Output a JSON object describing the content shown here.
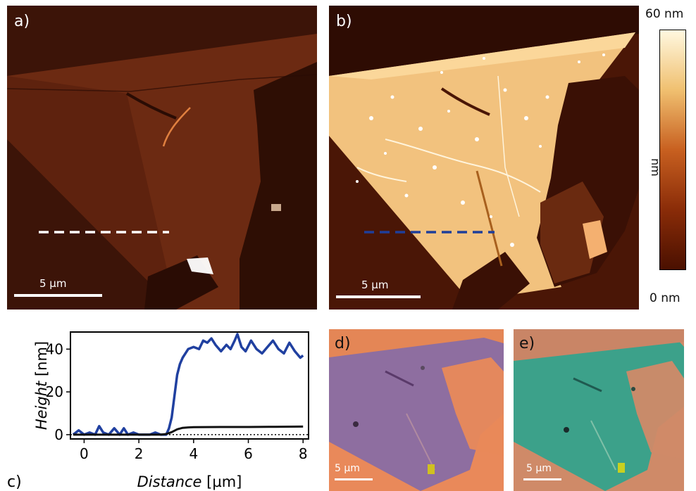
{
  "panels": {
    "a": {
      "label": "a)",
      "scale_bar": "5 µm"
    },
    "b": {
      "label": "b)",
      "scale_bar": "5 µm"
    },
    "c": {
      "label": "c)"
    },
    "d": {
      "label": "d)",
      "scale_bar": "5 µm"
    },
    "e": {
      "label": "e)",
      "scale_bar": "5 µm"
    }
  },
  "colorbar": {
    "max_label": "60 nm",
    "min_label": "0 nm",
    "unit_label": "nm",
    "colors": [
      "#fff8e0",
      "#f0c070",
      "#c86020",
      "#8a2c08",
      "#4a1000"
    ]
  },
  "colors": {
    "afm_dark": "#4a1a0c",
    "afm_flake_a": "#6e2c12",
    "afm_flake_b": "#f2c27a",
    "optical_bg": "#e98a5a",
    "optical_flake_d": "#8f6fa0",
    "optical_flake_e": "#3aa08a",
    "line_a": "#ffffff",
    "line_b": "#1f3f9a"
  },
  "chart_data": {
    "type": "line",
    "xlabel_italic": "Distance",
    "xlabel_unit": " [µm]",
    "ylabel_italic": "Height",
    "ylabel_unit": " [nm]",
    "xlim": [
      -0.5,
      8.2
    ],
    "ylim": [
      -2,
      48
    ],
    "xticks": [
      0,
      2,
      4,
      6,
      8
    ],
    "yticks": [
      0,
      20,
      40
    ],
    "grid": false,
    "reference_line": {
      "y": 0,
      "style": "dotted"
    },
    "series": [
      {
        "color": "#2040a0",
        "x": [
          -0.4,
          -0.2,
          0.0,
          0.2,
          0.4,
          0.55,
          0.7,
          0.9,
          1.1,
          1.3,
          1.45,
          1.6,
          1.8,
          2.0,
          2.2,
          2.4,
          2.6,
          2.8,
          3.0,
          3.1,
          3.2,
          3.3,
          3.4,
          3.5,
          3.6,
          3.7,
          3.8,
          4.0,
          4.2,
          4.35,
          4.5,
          4.65,
          4.8,
          5.0,
          5.2,
          5.35,
          5.5,
          5.6,
          5.75,
          5.9,
          6.1,
          6.3,
          6.5,
          6.7,
          6.9,
          7.1,
          7.3,
          7.5,
          7.7,
          7.9,
          8.0
        ],
        "y": [
          0,
          2,
          0,
          1,
          0,
          4,
          1,
          0,
          3,
          0,
          3,
          0,
          1,
          0,
          0,
          0,
          1,
          0,
          0,
          3,
          8,
          18,
          28,
          33,
          36,
          38,
          40,
          41,
          40,
          44,
          43,
          45,
          42,
          39,
          42,
          40,
          44,
          47,
          41,
          39,
          44,
          40,
          38,
          41,
          44,
          40,
          38,
          43,
          39,
          36,
          37
        ]
      },
      {
        "color": "#101010",
        "x": [
          -0.4,
          0.0,
          1.0,
          2.0,
          2.8,
          3.0,
          3.2,
          3.4,
          3.6,
          3.8,
          4.0,
          5.0,
          6.0,
          7.0,
          8.0
        ],
        "y": [
          0,
          0,
          0,
          0,
          0,
          0.3,
          1.2,
          2.5,
          3.2,
          3.4,
          3.5,
          3.6,
          3.6,
          3.7,
          3.8
        ]
      }
    ]
  }
}
